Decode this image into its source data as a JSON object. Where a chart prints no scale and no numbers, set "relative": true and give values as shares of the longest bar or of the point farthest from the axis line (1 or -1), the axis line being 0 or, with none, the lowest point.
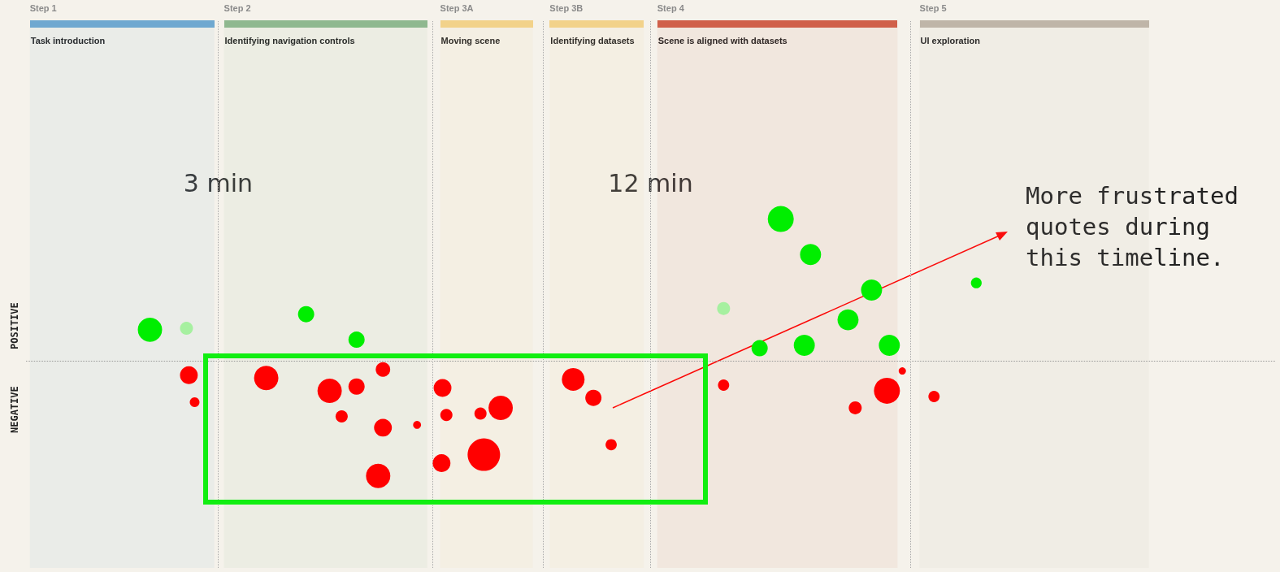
{
  "chart_data": {
    "type": "bubble",
    "relative": true,
    "xlim": [
      -1,
      25
    ],
    "xticks": [
      {
        "value": 3,
        "label": "3 min"
      },
      {
        "value": 12,
        "label": "12 min"
      }
    ],
    "series": [
      {
        "colors": [
          "#00ee00",
          "#a6f0a0",
          "#00ee00",
          "#00ee00",
          "#a6f0a0",
          "#00ee00",
          "#00ee00",
          "#00ee00",
          "#00ee00",
          "#00ee00",
          "#00ee00",
          "#00ee00",
          "#00ee00"
        ],
        "x": [
          1.58,
          2.34,
          4.83,
          5.88,
          13.52,
          14.71,
          15.33,
          16.6,
          16.11,
          14.27,
          15.2,
          16.97,
          18.78
        ],
        "values": [
          0.22,
          0.23,
          0.33,
          0.15,
          0.37,
          1,
          0.75,
          0.5,
          0.29,
          0.09,
          0.11,
          0.11,
          0.55
        ],
        "sizes": [
          0.56,
          0.16,
          0.25,
          0.25,
          0.16,
          0.64,
          0.42,
          0.42,
          0.42,
          0.25,
          0.42,
          0.42,
          0.11
        ]
      },
      {
        "color": "#ff0000",
        "x": [
          2.39,
          2.51,
          4,
          5.32,
          5.88,
          6.43,
          5.57,
          6.43,
          7.14,
          6.33,
          7.67,
          7.75,
          7.65,
          8.46,
          8.88,
          8.53,
          10.39,
          10.81,
          11.18,
          13.52,
          16.26,
          16.92,
          17.24,
          17.9
        ],
        "values": [
          -0.1,
          -0.29,
          -0.12,
          -0.21,
          -0.18,
          -0.06,
          -0.39,
          -0.47,
          -0.45,
          -0.81,
          -0.19,
          -0.38,
          -0.72,
          -0.37,
          -0.33,
          -0.66,
          -0.13,
          -0.26,
          -0.59,
          -0.17,
          -0.33,
          -0.21,
          -0.07,
          -0.25
        ],
        "sizes": [
          0.3,
          0.09,
          0.56,
          0.56,
          0.25,
          0.2,
          0.14,
          0.3,
          0.06,
          0.56,
          0.3,
          0.14,
          0.3,
          0.14,
          0.56,
          1,
          0.49,
          0.25,
          0.12,
          0.12,
          0.16,
          0.64,
          0.05,
          0.12
        ]
      }
    ],
    "ref_lines": [
      {
        "axis": "y",
        "value": 0,
        "line_style": "dotted",
        "color": "#999999"
      },
      {
        "axis": "x",
        "value": 3,
        "line_style": "dotted",
        "color": "#aaaaaa"
      },
      {
        "axis": "x",
        "value": 7.47,
        "line_style": "dotted",
        "color": "#aaaaaa"
      },
      {
        "axis": "x",
        "value": 9.77,
        "line_style": "dotted",
        "color": "#aaaaaa"
      },
      {
        "axis": "x",
        "value": 12,
        "line_style": "dotted",
        "color": "#aaaaaa"
      },
      {
        "axis": "x",
        "value": 17.41,
        "line_style": "dotted",
        "color": "#aaaaaa"
      }
    ],
    "bands": [
      {
        "axis": "x",
        "from": -0.92,
        "to": 2.92,
        "label": "Step 1\nTask introduction",
        "color": "#6fa8d0"
      },
      {
        "axis": "x",
        "from": 3.12,
        "to": 7.35,
        "label": "Step 2\nIdentifying navigation controls",
        "color": "#8fb88f"
      },
      {
        "axis": "x",
        "from": 7.62,
        "to": 9.55,
        "label": "Step 3A\nMoving scene",
        "color": "#f2d28a"
      },
      {
        "axis": "x",
        "from": 9.9,
        "to": 11.86,
        "label": "Step 3B\nIdentifying datasets",
        "color": "#f2d28a"
      },
      {
        "axis": "x",
        "from": 12.14,
        "to": 17.14,
        "label": "Step 4\nScene is aligned with datasets",
        "color": "#d0604a"
      },
      {
        "axis": "x",
        "from": 17.6,
        "to": 22.37,
        "label": "Step 5\nUI exploration",
        "color": "#bfb5a8"
      }
    ],
    "annotations": [
      "POSITIVE",
      "NEGATIVE",
      "More frustrated quotes during this timeline."
    ]
  }
}
